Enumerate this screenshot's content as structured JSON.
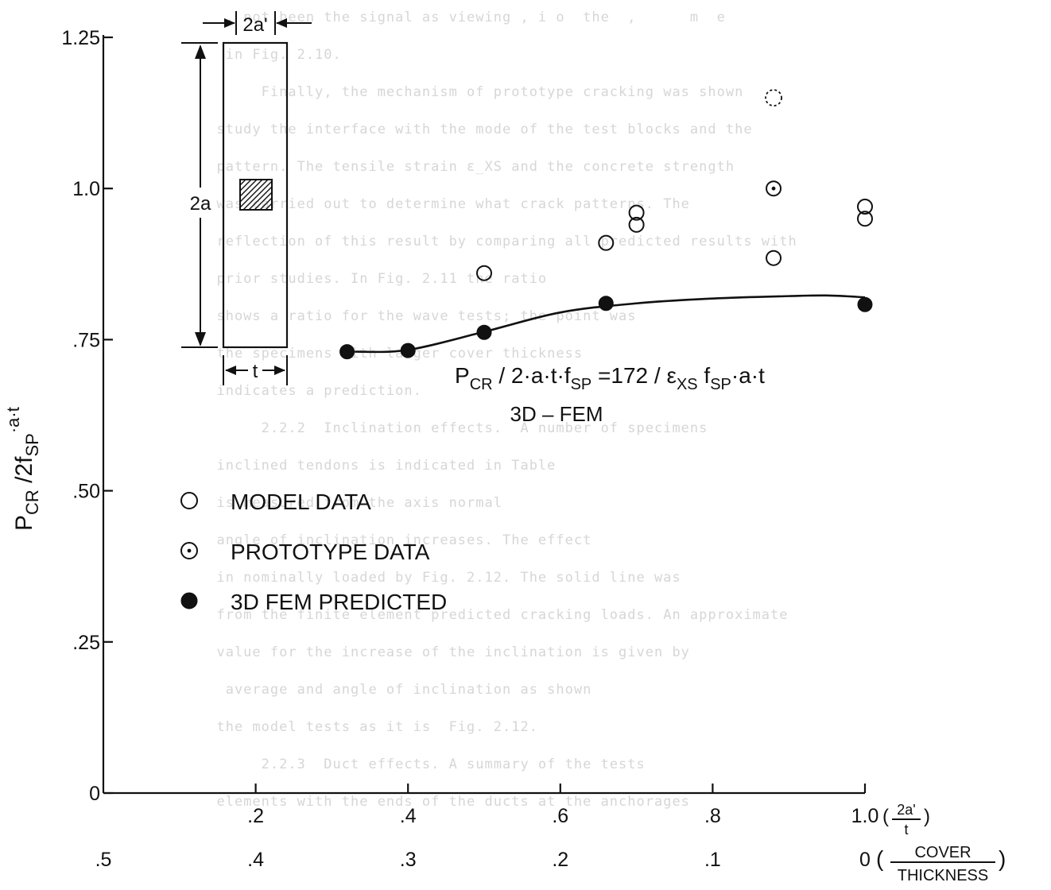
{
  "chart_data": {
    "type": "scatter",
    "xlim": [
      0,
      1.0
    ],
    "ylim": [
      0,
      1.25
    ],
    "grid": false,
    "x_ticks": [
      {
        "value": 0.2,
        "label": ".2"
      },
      {
        "value": 0.4,
        "label": ".4"
      },
      {
        "value": 0.6,
        "label": ".6"
      },
      {
        "value": 0.8,
        "label": ".8"
      },
      {
        "value": 1.0,
        "label": "1.0"
      }
    ],
    "x_unit_prefix": "(",
    "x_unit_num": "2a'",
    "x_unit_den": "t",
    "x_unit_suffix": ")",
    "secondary_x_ticks": [
      {
        "value": 0.0,
        "label": ".5"
      },
      {
        "value": 0.2,
        "label": ".4"
      },
      {
        "value": 0.4,
        "label": ".3"
      },
      {
        "value": 0.6,
        "label": ".2"
      },
      {
        "value": 0.8,
        "label": ".1"
      },
      {
        "value": 1.0,
        "label": "0"
      }
    ],
    "secondary_unit_num": "COVER",
    "secondary_unit_den": "THICKNESS",
    "y_ticks": [
      {
        "value": 0,
        "label": "0"
      },
      {
        "value": 0.25,
        "label": ".25"
      },
      {
        "value": 0.5,
        "label": ".50"
      },
      {
        "value": 0.75,
        "label": ".75"
      },
      {
        "value": 1.0,
        "label": "1.0"
      },
      {
        "value": 1.25,
        "label": "1.25"
      }
    ],
    "ylabel_main": "P",
    "ylabel_sub": "CR",
    "ylabel_rest": "/2f",
    "ylabel_sub2": "SP",
    "ylabel_sup": "·a·t",
    "legend_position": "center-left",
    "series": [
      {
        "name": "MODEL DATA",
        "marker": "open-circle",
        "points": [
          [
            0.5,
            0.86
          ],
          [
            0.66,
            0.91
          ],
          [
            0.7,
            0.96
          ],
          [
            0.7,
            0.94
          ],
          [
            0.88,
            0.885
          ],
          [
            1.0,
            0.97
          ],
          [
            1.0,
            0.95
          ]
        ]
      },
      {
        "name": "PROTOTYPE DATA",
        "marker": "dot-circle",
        "points": [
          [
            0.88,
            1.0
          ]
        ]
      },
      {
        "name": "3D FEM PREDICTED",
        "marker": "filled-circle",
        "points": [
          [
            0.32,
            0.73
          ],
          [
            0.4,
            0.732
          ],
          [
            0.5,
            0.762
          ],
          [
            0.66,
            0.81
          ],
          [
            1.0,
            0.808
          ]
        ]
      }
    ],
    "dashed_point": [
      0.88,
      1.15
    ],
    "fit_curve": [
      [
        0.33,
        0.73
      ],
      [
        0.4,
        0.733
      ],
      [
        0.5,
        0.763
      ],
      [
        0.6,
        0.795
      ],
      [
        0.7,
        0.81
      ],
      [
        0.8,
        0.818
      ],
      [
        0.9,
        0.822
      ],
      [
        0.95,
        0.823
      ],
      [
        1.0,
        0.82
      ]
    ],
    "annotation": {
      "formula_p": "P",
      "formula_cr": "CR",
      "formula_mid": " / 2·a·t·f",
      "formula_sp": "SP",
      "formula_eq": " =172 / ε",
      "formula_xs": "XS",
      "formula_f": " f",
      "formula_sp2": "SP",
      "formula_end": "·a·t",
      "method": "3D – FEM"
    },
    "inset": {
      "width_label": "2a'",
      "height_label": "2a",
      "thickness_label": "t"
    }
  },
  "colors": {
    "ink": "#111111",
    "background": "#ffffff",
    "bleed_text": "#d6d6d6"
  },
  "background_lines": [
    "   , not been the signal as viewing , i o  the  ,      m  e",
    "   in Fig. 2.10.",
    "       Finally, the mechanism of prototype cracking was shown",
    "  study the interface with the mode of the test blocks and the",
    "  pattern. The tensile strain ε_XS and the concrete strength",
    "  was carried out to determine what crack patterns. The",
    "  reflection of this result by comparing all predicted results with",
    "  prior studies. In Fig. 2.11 the ratio",
    "  shows a ratio for the wave tests; the point was",
    "  the specimens with larger cover thickness",
    "  indicates a prediction.",
    "       2.2.2  Inclination effects.  A number of specimens",
    "  inclined tendons is indicated in Table",
    "  is measured from the axis normal",
    "  angle of inclination increases. The effect",
    "  in nominally loaded by Fig. 2.12. The solid line was",
    "  from the finite element predicted cracking loads. An approximate",
    "  value for the increase of the inclination is given by",
    "   average and angle of inclination as shown",
    "  the model tests as it is  Fig. 2.12.",
    "       2.2.3  Duct effects. A summary of the tests",
    "  elements with the ends of the ducts at the anchorages"
  ]
}
